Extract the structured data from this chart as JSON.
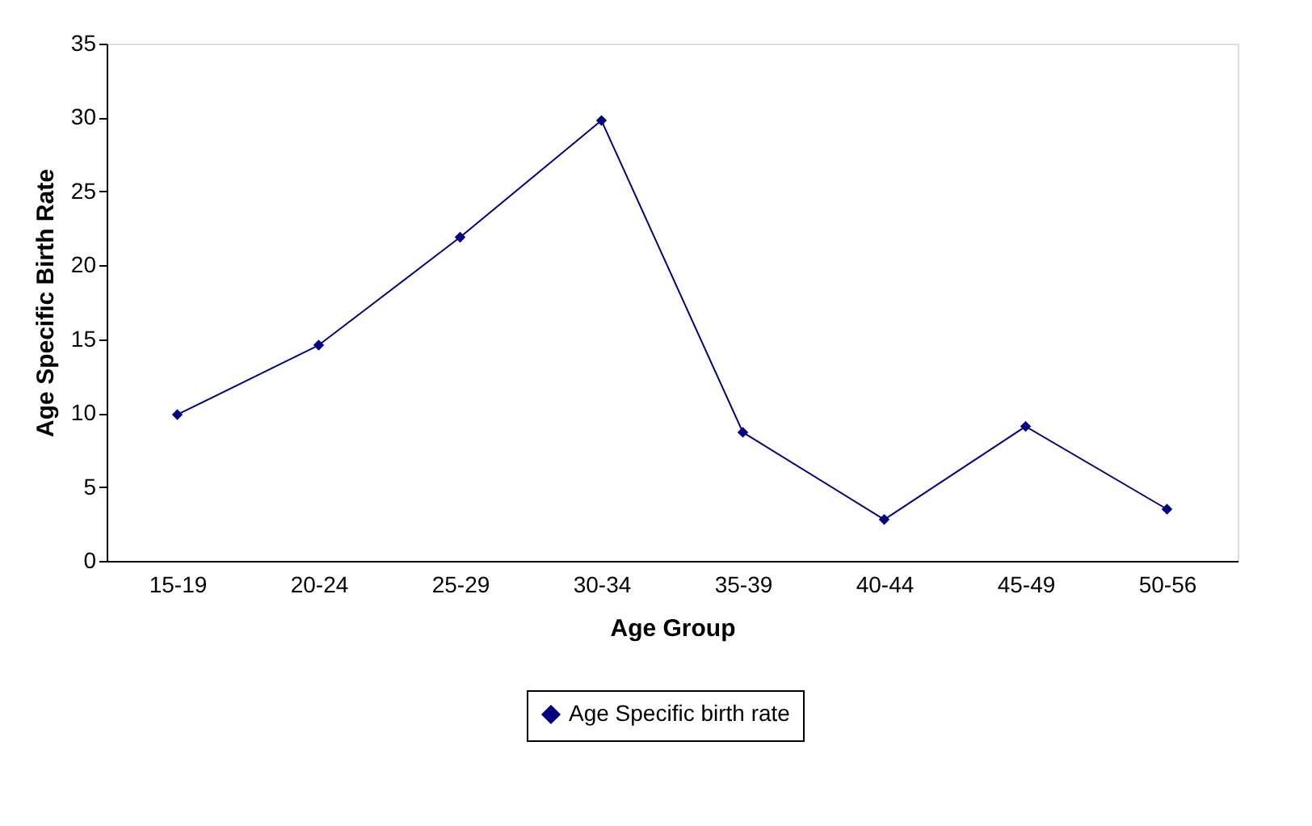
{
  "chart_data": {
    "type": "line",
    "xlabel": "Age Group",
    "ylabel": "Age Specific Birth Rate",
    "categories": [
      "15-19",
      "20-24",
      "25-29",
      "30-34",
      "35-39",
      "40-44",
      "45-49",
      "50-56"
    ],
    "series": [
      {
        "name": "Age Specific birth rate",
        "color": "#000080",
        "values": [
          9.9,
          14.6,
          21.9,
          29.8,
          8.7,
          2.8,
          9.1,
          3.5
        ]
      }
    ],
    "ylim": [
      0,
      35
    ],
    "yticks": [
      0,
      5,
      10,
      15,
      20,
      25,
      30,
      35
    ],
    "grid": false,
    "legend": "bottom",
    "marker": "diamond",
    "line_style": "solid"
  }
}
